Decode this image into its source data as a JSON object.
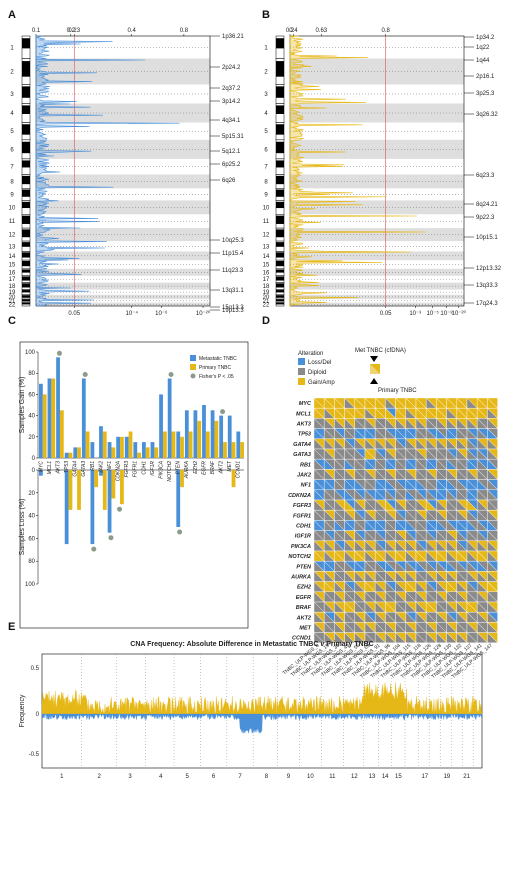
{
  "panel_labels": [
    "A",
    "B",
    "C",
    "D",
    "E"
  ],
  "colors": {
    "blue": "#4A90D9",
    "gold": "#E6B817",
    "gray": "#8A8A8A",
    "grid": "#DEDEDE",
    "red": "#D9534F",
    "dot": "#8C9C8C"
  },
  "chromosomes": [
    "1",
    "2",
    "3",
    "4",
    "5",
    "6",
    "7",
    "8",
    "9",
    "10",
    "11",
    "12",
    "13",
    "14",
    "15",
    "16",
    "17",
    "18",
    "19",
    "20",
    "21",
    "22"
  ],
  "chart_data": [
    {
      "type": "area",
      "panel": "A",
      "top_ticks": [
        "0.1",
        "0.2",
        "0.23",
        "0.4",
        "0.8"
      ],
      "bottom_ticks": [
        "0.05",
        "10⁻⁴",
        "10⁻⁶",
        "10⁻²⁰"
      ],
      "threshold_label": "0.05",
      "cytobands": [
        "1p36.21",
        "2p24.2",
        "2q37.2",
        "3p14.2",
        "4q34.1",
        "5p15.31",
        "5q12.1",
        "6p25.2",
        "6q26",
        "10q25.3",
        "11p15.4",
        "11q23.3",
        "13q31.1",
        "15q13.3",
        "19p13.3"
      ]
    },
    {
      "type": "area",
      "panel": "B",
      "top_ticks": [
        "0.2",
        "0.4",
        "0.63",
        "0.8"
      ],
      "bottom_ticks": [
        "0.05",
        "10⁻³",
        "10⁻⁵",
        "10⁻⁸",
        "10⁻²⁰"
      ],
      "threshold_label": "0.05",
      "cytobands": [
        "1p34.2",
        "1q22",
        "1q44",
        "2p16.1",
        "3p25.3",
        "3q26.32",
        "6q23.3",
        "8q24.21",
        "9p22.3",
        "10p15.1",
        "12p13.32",
        "13q33.3",
        "17q24.3"
      ]
    },
    {
      "type": "bar",
      "panel": "C",
      "categories": [
        "MYC",
        "MCL1",
        "AKT3",
        "TP53",
        "GATA4",
        "GATA3",
        "RB1",
        "JAK2",
        "NF1",
        "CDKN2A",
        "FGFR3",
        "FGFR1",
        "CDH1",
        "IGF1R",
        "PIK3CA",
        "NOTCH2",
        "PTEN",
        "AURKA",
        "EZH2",
        "EGFR",
        "BRAF",
        "AKT2",
        "MET",
        "CCND1"
      ],
      "ylabel_gain": "Samples Gain (%)",
      "ylabel_loss": "Samples Loss (%)",
      "gain_ticks": [
        "0",
        "20",
        "40",
        "60",
        "80",
        "100"
      ],
      "loss_ticks": [
        "0",
        "20",
        "40",
        "60",
        "80",
        "100"
      ],
      "legend": [
        "Metastatic TNBC",
        "Primary TNBC",
        "Fisher's P < .05"
      ],
      "series": [
        {
          "name": "Metastatic TNBC",
          "gain": [
            70,
            75,
            95,
            5,
            10,
            75,
            15,
            30,
            15,
            20,
            20,
            15,
            15,
            15,
            60,
            75,
            25,
            45,
            45,
            50,
            45,
            40,
            40,
            25
          ],
          "loss": [
            5,
            0,
            0,
            65,
            0,
            0,
            65,
            5,
            55,
            0,
            0,
            0,
            0,
            0,
            0,
            0,
            50,
            0,
            0,
            0,
            0,
            0,
            0,
            0
          ]
        },
        {
          "name": "Primary TNBC",
          "gain": [
            60,
            75,
            45,
            5,
            10,
            25,
            0,
            25,
            10,
            20,
            25,
            5,
            10,
            10,
            25,
            25,
            20,
            25,
            35,
            25,
            35,
            15,
            15,
            15
          ],
          "loss": [
            0,
            0,
            0,
            35,
            35,
            0,
            15,
            35,
            25,
            30,
            0,
            0,
            0,
            0,
            0,
            0,
            15,
            0,
            0,
            0,
            0,
            0,
            15,
            0
          ]
        }
      ],
      "fisher_gain_idx": [
        2,
        5,
        15,
        21
      ],
      "fisher_loss_idx": [
        6,
        8,
        9,
        16
      ]
    },
    {
      "type": "heatmap",
      "panel": "D",
      "legend_title": "Alteration",
      "legend": [
        "Loss/Del",
        "Diploid",
        "Gain/Amp"
      ],
      "met_label": "Met TNBC (cfDNA)",
      "prim_label": "Primary TNBC",
      "genes": [
        "MYC",
        "MCL1",
        "AKT3",
        "TP53",
        "GATA4",
        "GATA3",
        "RB1",
        "JAK2",
        "NF1",
        "CDKN2A",
        "FGFR3",
        "FGFR1",
        "CDH1",
        "IGF1R",
        "PIK3CA",
        "NOTCH2",
        "PTEN",
        "AURKA",
        "EZH2",
        "EGFR",
        "BRAF",
        "AKT2",
        "MET",
        "CCND1"
      ],
      "samples": [
        "TNBC_ULP-WGS_6",
        "TNBC_ULP-WGS_15",
        "TNBC_ULP-WGS_38",
        "TNBC_ULP-WGS_49",
        "TNBC_ULP-WGS_56",
        "TNBC_ULP-WGS_69",
        "TNBC_ULP-WGS_91",
        "TNBC_ULP-WGS_96",
        "TNBC_ULP-WGS_104",
        "TNBC_ULP-WGS_115",
        "TNBC_ULP-WGS_118",
        "TNBC_ULP-WGS_126",
        "TNBC_ULP-WGS_128",
        "TNBC_ULP-WGS_130",
        "TNBC_ULP-WGS_132",
        "TNBC_ULP-WGS_137",
        "TNBC_ULP-WGS_141",
        "TNBC_ULP-WGS_147"
      ],
      "met": [
        "222222222222222222",
        "222222202222222222",
        "122212122221222212",
        "010100100010101001",
        "222022220222222022",
        "121102021121102002",
        "011110101010111001",
        "121212121212121212",
        "001011010011010010",
        "010100001100001010",
        "212021202120212021",
        "121202120121212012",
        "011010010110100101",
        "101201012010120101",
        "220222022202220222",
        "222222222222222222",
        "001001010010010010",
        "221222122212221222",
        "222022202220222022",
        "212121212121212121",
        "122212221222122212",
        "202120212021202120",
        "212122121212121212",
        "122221222212222122"
      ],
      "prim": [
        "222122212221222122",
        "212221222122212221",
        "111111111111111111",
        "011100110011001110",
        "111111111111111111",
        "111112111111111111",
        "101010101010101010",
        "111111111111111111",
        "001001001001001001",
        "011011011011011011",
        "111211121112111211",
        "111111111111111111",
        "010010010010010010",
        "111111111111111111",
        "111111111111111111",
        "212121212121212121",
        "101101101101101101",
        "111111111111111111",
        "121112111211121112",
        "111111111111111111",
        "111211121112111211",
        "111111111111111111",
        "111111111111111111",
        "111111111111111111"
      ]
    },
    {
      "type": "area",
      "panel": "E",
      "title": "CNA Frequency: Absolute Difference in Metastatic TNBC ",
      "title_v": "v",
      "title_tail": " Primary TNBC",
      "ylabel": "Frequency",
      "yticks": [
        "0.5",
        "0",
        "-0.5"
      ],
      "xlabels": [
        "1",
        "2",
        "3",
        "4",
        "5",
        "6",
        "7",
        "8",
        "9",
        "10",
        "11",
        "12",
        "13",
        "14",
        "15",
        "17",
        "19",
        "21"
      ]
    }
  ]
}
